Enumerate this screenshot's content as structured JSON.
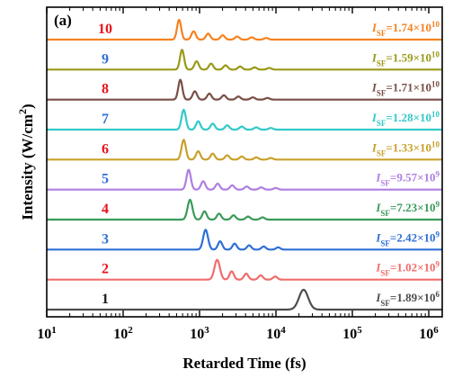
{
  "chart_data": {
    "type": "line",
    "panel_label": "(a)",
    "xlabel": "Retarded Time (fs)",
    "ylabel": "Intensity (W/cm²)",
    "ylabel_main": "Intensity (W/cm",
    "ylabel_sup": "2",
    "ylabel_tail": ")",
    "x_scale": "log",
    "xlim": [
      10,
      1500000
    ],
    "x_ticks": [
      {
        "value": 10,
        "base": "10",
        "exp": "1"
      },
      {
        "value": 100,
        "base": "10",
        "exp": "2"
      },
      {
        "value": 1000,
        "base": "10",
        "exp": "3"
      },
      {
        "value": 10000,
        "base": "10",
        "exp": "4"
      },
      {
        "value": 100000,
        "base": "10",
        "exp": "5"
      },
      {
        "value": 1000000,
        "base": "10",
        "exp": "6"
      }
    ],
    "y_ticks_visible": false,
    "grid": false,
    "series": [
      {
        "index": "1",
        "color": "#4d4d4d",
        "label_color": "#1a1a1a",
        "isf_mantissa": "1.89×10",
        "isf_exp": "6",
        "peak_fs": 23000,
        "width_dec": 0.085,
        "rings": 0
      },
      {
        "index": "2",
        "color": "#f06c6c",
        "label_color": "#e8121a",
        "isf_mantissa": "1.02×10",
        "isf_exp": "9",
        "peak_fs": 1700,
        "width_dec": 0.05,
        "rings": 4
      },
      {
        "index": "3",
        "color": "#2f6fd6",
        "label_color": "#2f6fd6",
        "isf_mantissa": "2.42×10",
        "isf_exp": "9",
        "peak_fs": 1200,
        "width_dec": 0.045,
        "rings": 5
      },
      {
        "index": "4",
        "color": "#3a9a5a",
        "label_color": "#e8121a",
        "isf_mantissa": "7.23×10",
        "isf_exp": "9",
        "peak_fs": 750,
        "width_dec": 0.045,
        "rings": 5
      },
      {
        "index": "5",
        "color": "#b07ee0",
        "label_color": "#2f6fd6",
        "isf_mantissa": "9.57×10",
        "isf_exp": "9",
        "peak_fs": 720,
        "width_dec": 0.04,
        "rings": 6
      },
      {
        "index": "6",
        "color": "#c9a02a",
        "label_color": "#e8121a",
        "isf_mantissa": "1.33×10",
        "isf_exp": "10",
        "peak_fs": 620,
        "width_dec": 0.04,
        "rings": 6
      },
      {
        "index": "7",
        "color": "#33c8c8",
        "label_color": "#2f6fd6",
        "isf_mantissa": "1.28×10",
        "isf_exp": "10",
        "peak_fs": 620,
        "width_dec": 0.04,
        "rings": 6
      },
      {
        "index": "8",
        "color": "#7a4e46",
        "label_color": "#e8121a",
        "isf_mantissa": "1.71×10",
        "isf_exp": "10",
        "peak_fs": 560,
        "width_dec": 0.038,
        "rings": 6
      },
      {
        "index": "9",
        "color": "#999919",
        "label_color": "#2f6fd6",
        "isf_mantissa": "1.59×10",
        "isf_exp": "10",
        "peak_fs": 590,
        "width_dec": 0.038,
        "rings": 6
      },
      {
        "index": "10",
        "color": "#f58220",
        "label_color": "#e8121a",
        "isf_mantissa": "1.74×10",
        "isf_exp": "10",
        "peak_fs": 540,
        "width_dec": 0.038,
        "rings": 6
      }
    ]
  }
}
